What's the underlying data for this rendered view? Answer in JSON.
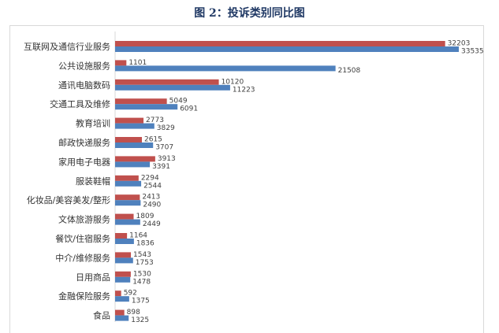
{
  "chart_data": {
    "type": "bar",
    "orientation": "horizontal",
    "title": "图 2：投诉类别同比图",
    "categories": [
      "互联网及通信行业服务",
      "公共设施服务",
      "通讯电脑数码",
      "交通工具及维修",
      "教育培训",
      "邮政快递服务",
      "家用电子电器",
      "服装鞋帽",
      "化妆品/美容美发/整形",
      "文体旅游服务",
      "餐饮/住宿服务",
      "中介/维修服务",
      "日用商品",
      "金融保险服务",
      "食品"
    ],
    "series": [
      {
        "values": [
          32203,
          1101,
          10120,
          5049,
          2773,
          2615,
          3913,
          2294,
          2413,
          1809,
          1164,
          1543,
          1530,
          592,
          898
        ],
        "color": "#C0504D"
      },
      {
        "values": [
          33535,
          21508,
          11223,
          6091,
          3829,
          3707,
          3391,
          2544,
          2490,
          2449,
          1836,
          1753,
          1478,
          1375,
          1325
        ],
        "color": "#4F81BD"
      }
    ],
    "xlim": [
      0,
      35000
    ],
    "grid": false,
    "data_labels": true
  }
}
